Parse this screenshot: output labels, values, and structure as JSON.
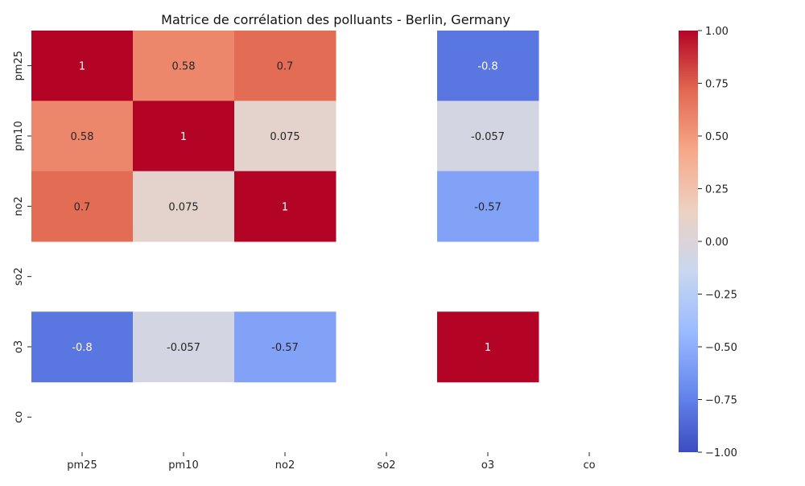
{
  "chart_data": {
    "type": "heatmap",
    "title": "Matrice de corrélation des polluants - Berlin, Germany",
    "xlabel": "",
    "ylabel": "",
    "x_categories": [
      "pm25",
      "pm10",
      "no2",
      "so2",
      "o3",
      "co"
    ],
    "y_categories": [
      "pm25",
      "pm10",
      "no2",
      "so2",
      "o3",
      "co"
    ],
    "values": [
      [
        1,
        0.58,
        0.7,
        null,
        -0.8,
        null
      ],
      [
        0.58,
        1,
        0.075,
        null,
        -0.057,
        null
      ],
      [
        0.7,
        0.075,
        1,
        null,
        -0.57,
        null
      ],
      [
        null,
        null,
        null,
        null,
        null,
        null
      ],
      [
        -0.8,
        -0.057,
        -0.57,
        null,
        1,
        null
      ],
      [
        null,
        null,
        null,
        null,
        null,
        null
      ]
    ],
    "annotations": true,
    "colormap": "coolwarm",
    "vmin": -1,
    "vmax": 1,
    "colorbar_ticks": [
      1.0,
      0.75,
      0.5,
      0.25,
      0.0,
      -0.25,
      -0.5,
      -0.75,
      -1.0
    ],
    "colorbar_tick_labels": [
      "1.00",
      "0.75",
      "0.50",
      "0.25",
      "0.00",
      "−0.25",
      "−0.50",
      "−0.75",
      "−1.00"
    ],
    "colorbar_stops": [
      "#3b4cc0",
      "#6788ee",
      "#9abbff",
      "#c9d7f0",
      "#edd1c2",
      "#f7a889",
      "#e26952",
      "#b40426"
    ],
    "grid": false
  }
}
